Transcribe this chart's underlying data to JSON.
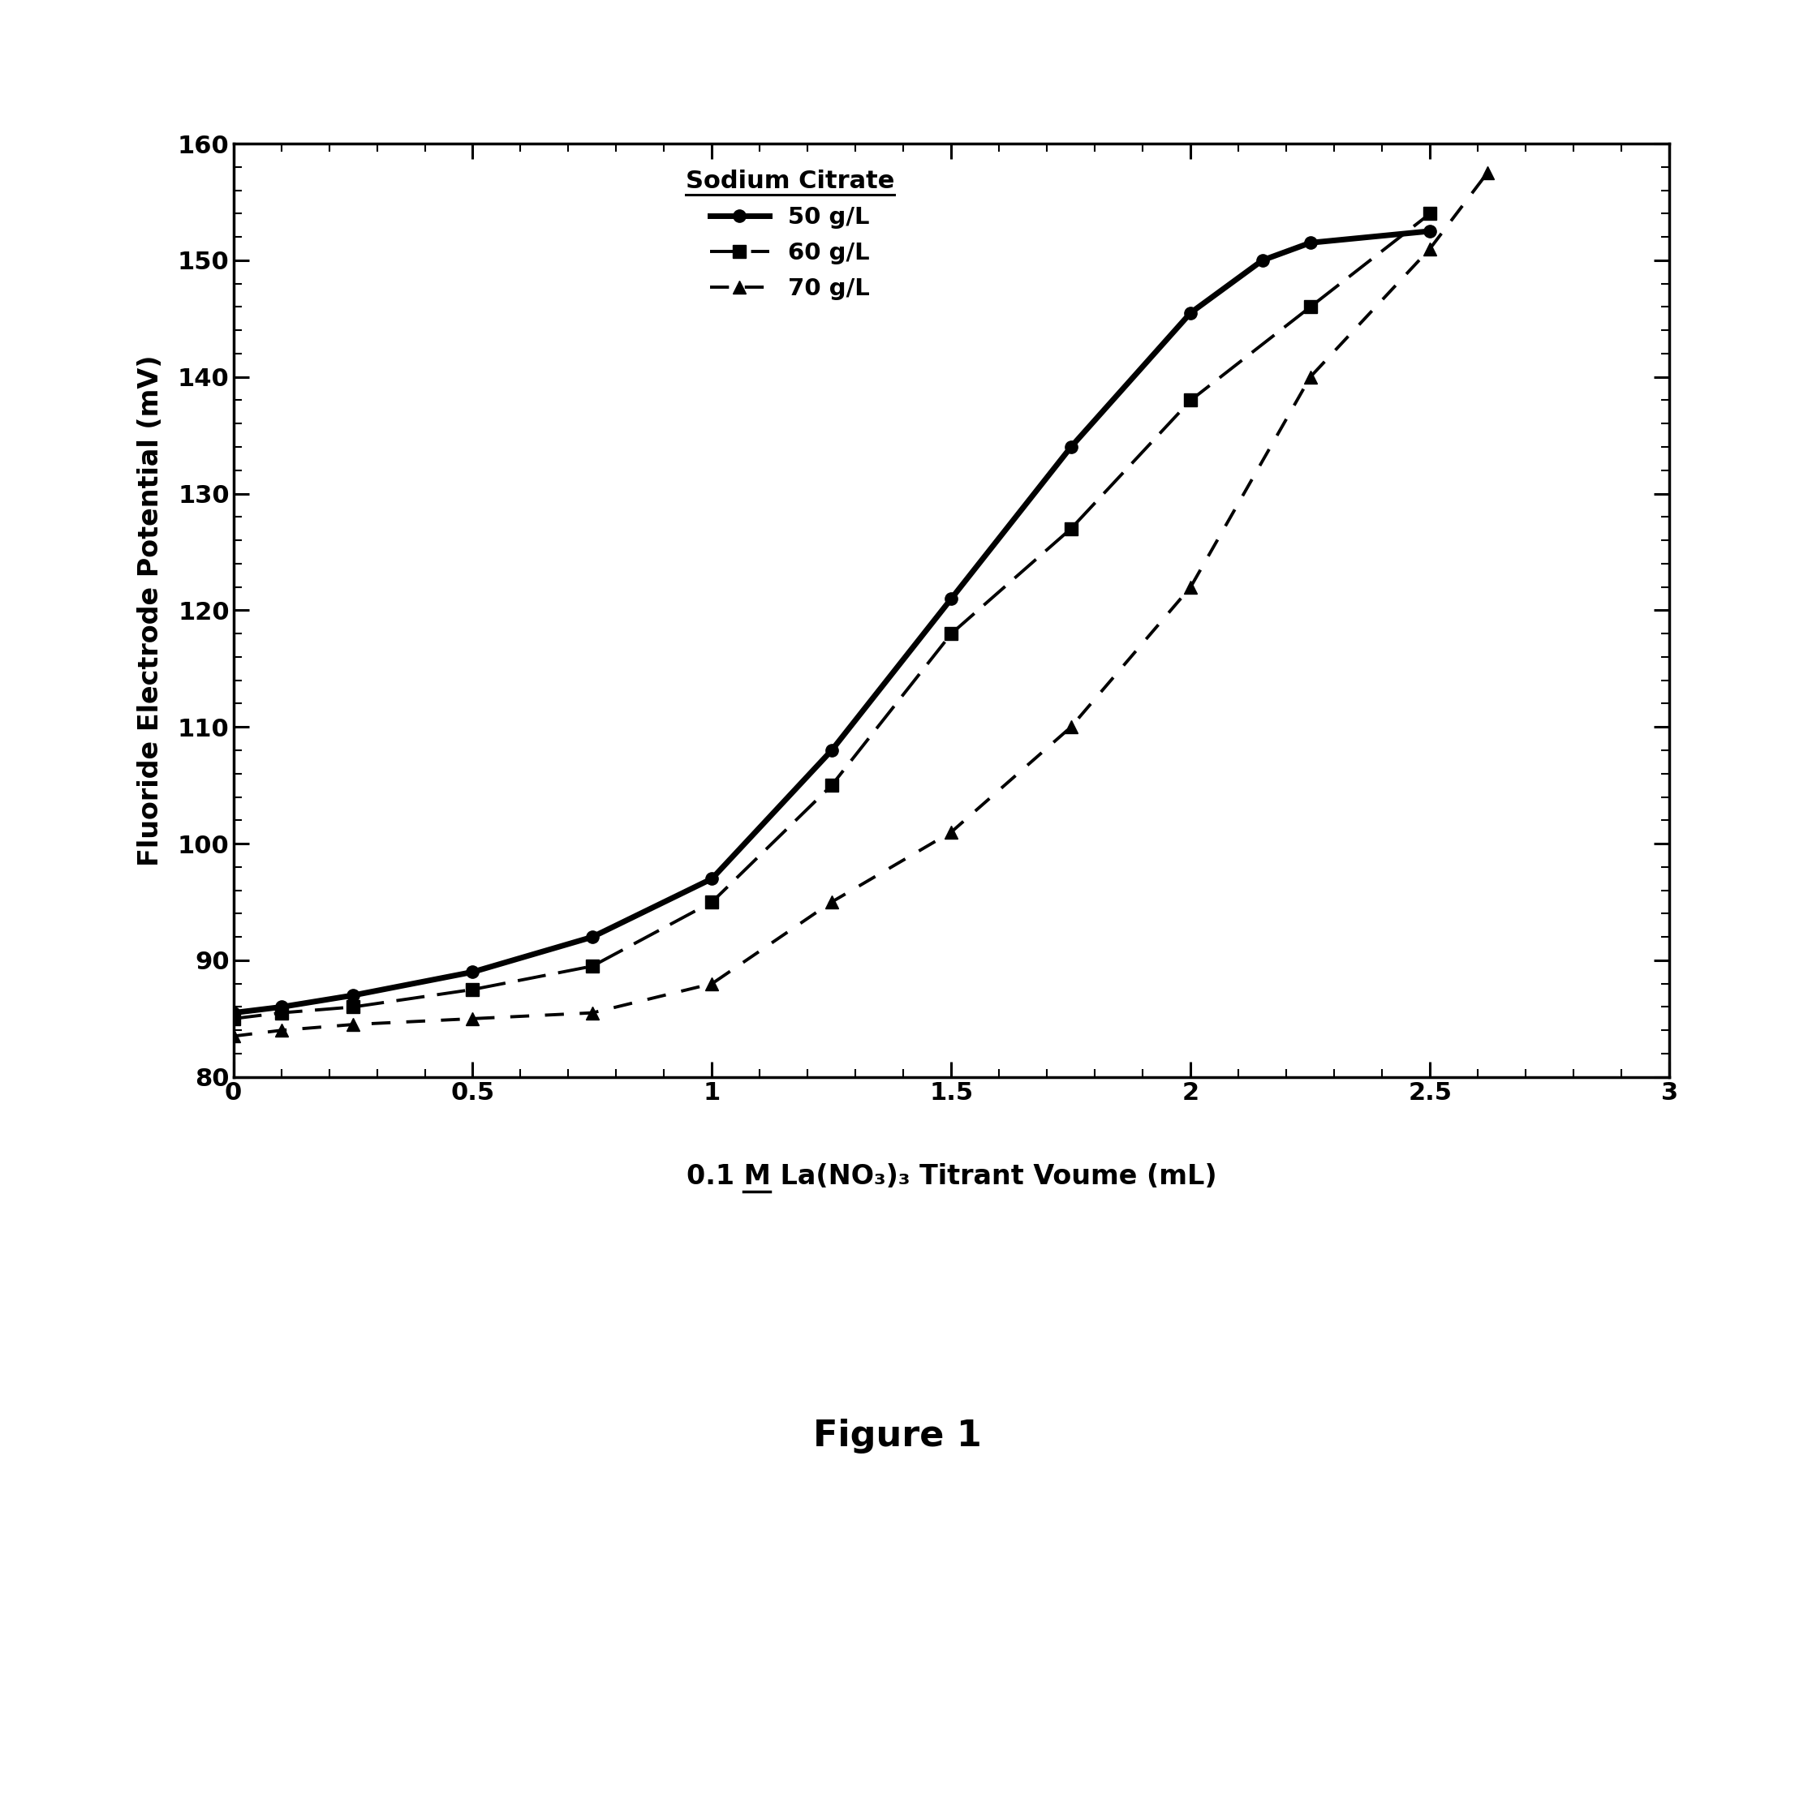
{
  "ylabel": "Fluoride Electrode Potential (mV)",
  "xlim": [
    0,
    3
  ],
  "ylim": [
    80,
    160
  ],
  "xticks": [
    0,
    0.5,
    1,
    1.5,
    2,
    2.5,
    3
  ],
  "yticks": [
    80,
    90,
    100,
    110,
    120,
    130,
    140,
    150,
    160
  ],
  "series_50_x": [
    0,
    0.1,
    0.25,
    0.5,
    0.75,
    1.0,
    1.25,
    1.5,
    1.75,
    2.0,
    2.15,
    2.25,
    2.5
  ],
  "series_50_y": [
    85.5,
    86,
    87,
    89,
    92,
    97,
    108,
    121,
    134,
    145.5,
    150,
    151.5,
    152.5
  ],
  "series_60_x": [
    0,
    0.1,
    0.25,
    0.5,
    0.75,
    1.0,
    1.25,
    1.5,
    1.75,
    2.0,
    2.25,
    2.5
  ],
  "series_60_y": [
    85,
    85.5,
    86,
    87.5,
    89.5,
    95,
    105,
    118,
    127,
    138,
    146,
    154
  ],
  "series_70_x": [
    0,
    0.1,
    0.25,
    0.5,
    0.75,
    1.0,
    1.25,
    1.5,
    1.75,
    2.0,
    2.25,
    2.5,
    2.62
  ],
  "series_70_y": [
    83.5,
    84,
    84.5,
    85,
    85.5,
    88,
    95,
    101,
    110,
    122,
    140,
    151,
    157.5
  ],
  "label_50": "50 g/L",
  "label_60": "60 g/L",
  "label_70": "70 g/L",
  "legend_title": "Sodium Citrate",
  "figure_caption": "Figure 1",
  "background_color": "#ffffff",
  "line_color": "#000000"
}
